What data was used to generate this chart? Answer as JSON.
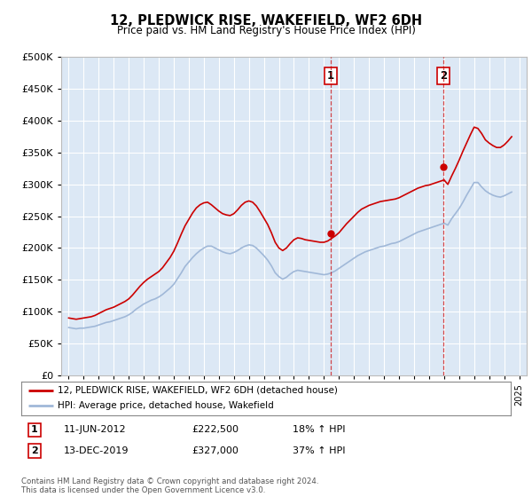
{
  "title": "12, PLEDWICK RISE, WAKEFIELD, WF2 6DH",
  "subtitle": "Price paid vs. HM Land Registry's House Price Index (HPI)",
  "legend_line1": "12, PLEDWICK RISE, WAKEFIELD, WF2 6DH (detached house)",
  "legend_line2": "HPI: Average price, detached house, Wakefield",
  "sale1_label": "1",
  "sale1_date": "11-JUN-2012",
  "sale1_price": "£222,500",
  "sale1_hpi": "18% ↑ HPI",
  "sale1_year": 2012.44,
  "sale1_value": 222500,
  "sale2_label": "2",
  "sale2_date": "13-DEC-2019",
  "sale2_price": "£327,000",
  "sale2_hpi": "37% ↑ HPI",
  "sale2_year": 2019.95,
  "sale2_value": 327000,
  "ylim": [
    0,
    500000
  ],
  "yticks": [
    0,
    50000,
    100000,
    150000,
    200000,
    250000,
    300000,
    350000,
    400000,
    450000,
    500000
  ],
  "xlim_start": 1994.5,
  "xlim_end": 2025.5,
  "plot_bg_color": "#dce8f5",
  "grid_color": "#ffffff",
  "red_line_color": "#cc0000",
  "blue_line_color": "#a0b8d8",
  "vline_color": "#cc0000",
  "footnote": "Contains HM Land Registry data © Crown copyright and database right 2024.\nThis data is licensed under the Open Government Licence v3.0.",
  "hpi_data_x": [
    1995.0,
    1995.25,
    1995.5,
    1995.75,
    1996.0,
    1996.25,
    1996.5,
    1996.75,
    1997.0,
    1997.25,
    1997.5,
    1997.75,
    1998.0,
    1998.25,
    1998.5,
    1998.75,
    1999.0,
    1999.25,
    1999.5,
    1999.75,
    2000.0,
    2000.25,
    2000.5,
    2000.75,
    2001.0,
    2001.25,
    2001.5,
    2001.75,
    2002.0,
    2002.25,
    2002.5,
    2002.75,
    2003.0,
    2003.25,
    2003.5,
    2003.75,
    2004.0,
    2004.25,
    2004.5,
    2004.75,
    2005.0,
    2005.25,
    2005.5,
    2005.75,
    2006.0,
    2006.25,
    2006.5,
    2006.75,
    2007.0,
    2007.25,
    2007.5,
    2007.75,
    2008.0,
    2008.25,
    2008.5,
    2008.75,
    2009.0,
    2009.25,
    2009.5,
    2009.75,
    2010.0,
    2010.25,
    2010.5,
    2010.75,
    2011.0,
    2011.25,
    2011.5,
    2011.75,
    2012.0,
    2012.25,
    2012.5,
    2012.75,
    2013.0,
    2013.25,
    2013.5,
    2013.75,
    2014.0,
    2014.25,
    2014.5,
    2014.75,
    2015.0,
    2015.25,
    2015.5,
    2015.75,
    2016.0,
    2016.25,
    2016.5,
    2016.75,
    2017.0,
    2017.25,
    2017.5,
    2017.75,
    2018.0,
    2018.25,
    2018.5,
    2018.75,
    2019.0,
    2019.25,
    2019.5,
    2019.75,
    2020.0,
    2020.25,
    2020.5,
    2020.75,
    2021.0,
    2021.25,
    2021.5,
    2021.75,
    2022.0,
    2022.25,
    2022.5,
    2022.75,
    2023.0,
    2023.25,
    2023.5,
    2023.75,
    2024.0,
    2024.25,
    2024.5
  ],
  "hpi_data_y": [
    75000,
    74000,
    73000,
    74000,
    74000,
    75000,
    76000,
    77000,
    79000,
    81000,
    83000,
    84000,
    86000,
    88000,
    90000,
    92000,
    95000,
    99000,
    104000,
    108000,
    112000,
    115000,
    118000,
    120000,
    123000,
    127000,
    132000,
    137000,
    143000,
    152000,
    161000,
    171000,
    178000,
    185000,
    191000,
    196000,
    200000,
    203000,
    203000,
    200000,
    197000,
    194000,
    192000,
    191000,
    193000,
    196000,
    200000,
    203000,
    205000,
    204000,
    200000,
    194000,
    188000,
    181000,
    172000,
    161000,
    155000,
    151000,
    154000,
    159000,
    163000,
    165000,
    164000,
    163000,
    162000,
    161000,
    160000,
    159000,
    158000,
    159000,
    161000,
    164000,
    168000,
    172000,
    176000,
    180000,
    184000,
    188000,
    191000,
    194000,
    196000,
    198000,
    200000,
    202000,
    203000,
    205000,
    207000,
    208000,
    210000,
    213000,
    216000,
    219000,
    222000,
    225000,
    227000,
    229000,
    231000,
    233000,
    235000,
    237000,
    239000,
    236000,
    246000,
    254000,
    262000,
    272000,
    283000,
    293000,
    303000,
    303000,
    296000,
    290000,
    286000,
    283000,
    281000,
    280000,
    282000,
    285000,
    288000
  ],
  "price_data_x": [
    1995.0,
    1995.25,
    1995.5,
    1995.75,
    1996.0,
    1996.25,
    1996.5,
    1996.75,
    1997.0,
    1997.25,
    1997.5,
    1997.75,
    1998.0,
    1998.25,
    1998.5,
    1998.75,
    1999.0,
    1999.25,
    1999.5,
    1999.75,
    2000.0,
    2000.25,
    2000.5,
    2000.75,
    2001.0,
    2001.25,
    2001.5,
    2001.75,
    2002.0,
    2002.25,
    2002.5,
    2002.75,
    2003.0,
    2003.25,
    2003.5,
    2003.75,
    2004.0,
    2004.25,
    2004.5,
    2004.75,
    2005.0,
    2005.25,
    2005.5,
    2005.75,
    2006.0,
    2006.25,
    2006.5,
    2006.75,
    2007.0,
    2007.25,
    2007.5,
    2007.75,
    2008.0,
    2008.25,
    2008.5,
    2008.75,
    2009.0,
    2009.25,
    2009.5,
    2009.75,
    2010.0,
    2010.25,
    2010.5,
    2010.75,
    2011.0,
    2011.25,
    2011.5,
    2011.75,
    2012.0,
    2012.25,
    2012.5,
    2012.75,
    2013.0,
    2013.25,
    2013.5,
    2013.75,
    2014.0,
    2014.25,
    2014.5,
    2014.75,
    2015.0,
    2015.25,
    2015.5,
    2015.75,
    2016.0,
    2016.25,
    2016.5,
    2016.75,
    2017.0,
    2017.25,
    2017.5,
    2017.75,
    2018.0,
    2018.25,
    2018.5,
    2018.75,
    2019.0,
    2019.25,
    2019.5,
    2019.75,
    2020.0,
    2020.25,
    2020.5,
    2020.75,
    2021.0,
    2021.25,
    2021.5,
    2021.75,
    2022.0,
    2022.25,
    2022.5,
    2022.75,
    2023.0,
    2023.25,
    2023.5,
    2023.75,
    2024.0,
    2024.25,
    2024.5
  ],
  "price_data_y": [
    90000,
    89000,
    88000,
    89000,
    90000,
    91000,
    92000,
    94000,
    97000,
    100000,
    103000,
    105000,
    107000,
    110000,
    113000,
    116000,
    120000,
    126000,
    133000,
    140000,
    146000,
    151000,
    155000,
    159000,
    163000,
    169000,
    177000,
    185000,
    195000,
    208000,
    222000,
    235000,
    245000,
    255000,
    263000,
    268000,
    271000,
    272000,
    268000,
    263000,
    258000,
    254000,
    252000,
    251000,
    254000,
    260000,
    267000,
    272000,
    274000,
    272000,
    266000,
    257000,
    247000,
    237000,
    224000,
    209000,
    200000,
    196000,
    200000,
    207000,
    213000,
    216000,
    215000,
    213000,
    212000,
    211000,
    210000,
    209000,
    209000,
    211000,
    215000,
    219000,
    224000,
    231000,
    238000,
    244000,
    250000,
    256000,
    261000,
    264000,
    267000,
    269000,
    271000,
    273000,
    274000,
    275000,
    276000,
    277000,
    279000,
    282000,
    285000,
    288000,
    291000,
    294000,
    296000,
    298000,
    299000,
    301000,
    303000,
    305000,
    307000,
    300000,
    313000,
    325000,
    338000,
    352000,
    365000,
    378000,
    390000,
    388000,
    380000,
    370000,
    365000,
    361000,
    358000,
    358000,
    362000,
    368000,
    375000
  ]
}
